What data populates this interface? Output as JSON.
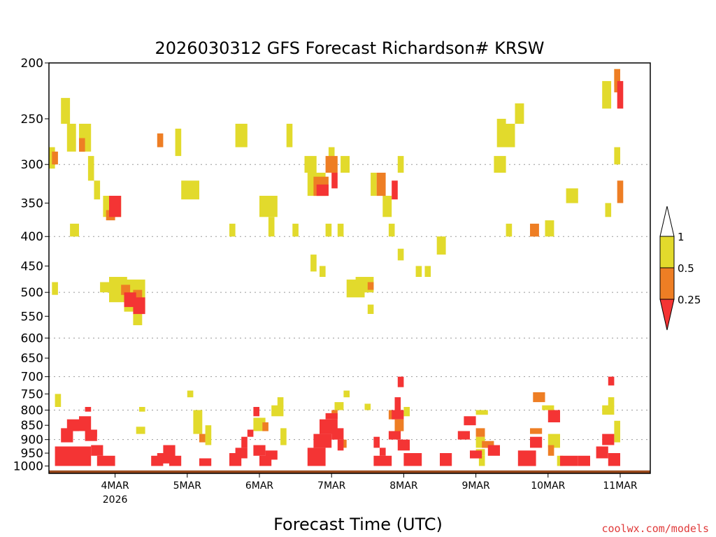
{
  "chart_data": {
    "type": "heatmap",
    "title": "2026030312 GFS Forecast Richardson# KRSW",
    "xlabel": "Forecast Time (UTC)",
    "ylabel": "",
    "credit": "coolwx.com/models",
    "x_range_hours": [
      -10,
      190
    ],
    "y_range_mb": [
      1030,
      200
    ],
    "x_ticks": [
      {
        "hour": 12,
        "label": "4MAR",
        "sublabel": "2026"
      },
      {
        "hour": 36,
        "label": "5MAR"
      },
      {
        "hour": 60,
        "label": "6MAR"
      },
      {
        "hour": 84,
        "label": "7MAR"
      },
      {
        "hour": 108,
        "label": "8MAR"
      },
      {
        "hour": 132,
        "label": "9MAR"
      },
      {
        "hour": 156,
        "label": "10MAR"
      },
      {
        "hour": 180,
        "label": "11MAR"
      }
    ],
    "y_ticks": [
      {
        "p": 200,
        "label": "200"
      },
      {
        "p": 250,
        "label": "250"
      },
      {
        "p": 300,
        "label": "300"
      },
      {
        "p": 350,
        "label": "350"
      },
      {
        "p": 400,
        "label": "400"
      },
      {
        "p": 450,
        "label": "450"
      },
      {
        "p": 500,
        "label": "500"
      },
      {
        "p": 550,
        "label": "550"
      },
      {
        "p": 600,
        "label": "600"
      },
      {
        "p": 650,
        "label": "650"
      },
      {
        "p": 700,
        "label": "700"
      },
      {
        "p": 750,
        "label": "750"
      },
      {
        "p": 800,
        "label": "800"
      },
      {
        "p": 850,
        "label": "850"
      },
      {
        "p": 900,
        "label": "900"
      },
      {
        "p": 950,
        "label": "950"
      },
      {
        "p": 1000,
        "label": "1000"
      }
    ],
    "gridlines_mb": [
      300,
      400,
      500,
      600,
      700,
      800,
      900
    ],
    "legend": {
      "placement": "right",
      "bins": [
        {
          "label": "1",
          "color": "#ffffff"
        },
        {
          "label": "0.5",
          "color": "#e2da2c"
        },
        {
          "label": "0.25",
          "color": "#ee7e24"
        },
        {
          "label": "",
          "color": "#f43434"
        }
      ]
    },
    "colors": {
      "yellow": "#e2da2c",
      "orange": "#ee7e24",
      "red": "#f43434",
      "ground": "#9a4a1c",
      "grid": "#999999"
    },
    "ground_p_mb": 1018,
    "series": [
      {
        "name": "0.5 - 1",
        "color_key": "yellow",
        "cells": [
          [
            -10,
            -8,
            280,
            305
          ],
          [
            -8,
            -6,
            750,
            790
          ],
          [
            -9,
            -7,
            480,
            505
          ],
          [
            -6,
            -3,
            230,
            255
          ],
          [
            -4,
            -1,
            255,
            285
          ],
          [
            -3,
            0,
            380,
            400
          ],
          [
            0,
            4,
            255,
            285
          ],
          [
            3,
            5,
            290,
            320
          ],
          [
            5,
            7,
            320,
            345
          ],
          [
            8,
            14,
            340,
            370
          ],
          [
            7,
            10,
            480,
            500
          ],
          [
            10,
            16,
            470,
            520
          ],
          [
            15,
            22,
            475,
            540
          ],
          [
            18,
            21,
            545,
            570
          ],
          [
            20,
            22,
            790,
            805
          ],
          [
            19,
            22,
            855,
            880
          ],
          [
            32,
            34,
            260,
            290
          ],
          [
            34,
            40,
            320,
            345
          ],
          [
            36,
            38,
            740,
            760
          ],
          [
            38,
            41,
            800,
            880
          ],
          [
            42,
            44,
            850,
            920
          ],
          [
            50,
            52,
            380,
            400
          ],
          [
            52,
            56,
            255,
            280
          ],
          [
            66,
            68,
            760,
            790
          ],
          [
            64,
            68,
            785,
            820
          ],
          [
            58,
            62,
            825,
            870
          ],
          [
            60,
            66,
            340,
            370
          ],
          [
            63,
            65,
            370,
            400
          ],
          [
            67,
            69,
            860,
            920
          ],
          [
            71,
            73,
            380,
            400
          ],
          [
            69,
            71,
            255,
            280
          ],
          [
            75,
            79,
            290,
            310
          ],
          [
            76,
            82,
            310,
            340
          ],
          [
            77,
            79,
            430,
            460
          ],
          [
            80,
            82,
            450,
            470
          ],
          [
            82,
            84,
            380,
            400
          ],
          [
            83,
            85,
            280,
            300
          ],
          [
            85,
            88,
            775,
            800
          ],
          [
            88,
            90,
            740,
            760
          ],
          [
            86,
            88,
            380,
            400
          ],
          [
            87,
            90,
            290,
            310
          ],
          [
            89,
            95,
            475,
            510
          ],
          [
            92,
            98,
            470,
            500
          ],
          [
            96,
            98,
            525,
            545
          ],
          [
            95,
            97,
            780,
            800
          ],
          [
            97,
            99,
            310,
            340
          ],
          [
            101,
            104,
            340,
            370
          ],
          [
            103,
            105,
            380,
            400
          ],
          [
            106,
            108,
            290,
            310
          ],
          [
            106,
            108,
            420,
            440
          ],
          [
            108,
            110,
            790,
            820
          ],
          [
            112,
            114,
            450,
            470
          ],
          [
            115,
            117,
            450,
            470
          ],
          [
            119,
            122,
            400,
            430
          ],
          [
            132,
            135,
            890,
            930
          ],
          [
            132,
            136,
            800,
            815
          ],
          [
            132,
            135,
            935,
            960
          ],
          [
            133,
            135,
            960,
            1000
          ],
          [
            138,
            142,
            290,
            310
          ],
          [
            139,
            142,
            250,
            280
          ],
          [
            141,
            145,
            255,
            280
          ],
          [
            142,
            144,
            380,
            400
          ],
          [
            145,
            148,
            235,
            255
          ],
          [
            154,
            158,
            785,
            800
          ],
          [
            155,
            158,
            375,
            400
          ],
          [
            156,
            160,
            880,
            930
          ],
          [
            159,
            161,
            960,
            1000
          ],
          [
            162,
            166,
            330,
            350
          ],
          [
            174,
            177,
            215,
            240
          ],
          [
            175,
            177,
            350,
            370
          ],
          [
            178,
            180,
            835,
            910
          ],
          [
            176,
            178,
            760,
            790
          ],
          [
            174,
            178,
            785,
            815
          ],
          [
            178,
            180,
            280,
            300
          ],
          [
            178,
            180,
            205,
            220
          ]
        ]
      },
      {
        "name": "0.25 - 0.5",
        "color_key": "orange",
        "cells": [
          [
            -9,
            -7,
            285,
            300
          ],
          [
            0,
            2,
            270,
            285
          ],
          [
            9,
            12,
            360,
            375
          ],
          [
            14,
            17,
            485,
            505
          ],
          [
            18,
            21,
            495,
            530
          ],
          [
            26,
            28,
            265,
            280
          ],
          [
            40,
            42,
            880,
            910
          ],
          [
            61,
            63,
            840,
            870
          ],
          [
            78,
            83,
            315,
            340
          ],
          [
            82,
            86,
            290,
            310
          ],
          [
            84,
            86,
            800,
            830
          ],
          [
            87,
            89,
            900,
            930
          ],
          [
            96,
            98,
            480,
            495
          ],
          [
            99,
            102,
            310,
            340
          ],
          [
            103,
            106,
            800,
            830
          ],
          [
            105,
            108,
            830,
            870
          ],
          [
            132,
            135,
            860,
            890
          ],
          [
            134,
            138,
            905,
            930
          ],
          [
            150,
            154,
            860,
            880
          ],
          [
            151,
            155,
            745,
            775
          ],
          [
            150,
            153,
            380,
            400
          ],
          [
            156,
            158,
            920,
            960
          ],
          [
            179,
            181,
            320,
            350
          ],
          [
            178,
            180,
            205,
            225
          ]
        ]
      },
      {
        "name": "0 - 0.25",
        "color_key": "red",
        "cells": [
          [
            -8,
            4,
            925,
            1000
          ],
          [
            -6,
            -2,
            860,
            910
          ],
          [
            -4,
            0,
            830,
            870
          ],
          [
            0,
            4,
            820,
            870
          ],
          [
            2,
            6,
            865,
            905
          ],
          [
            4,
            8,
            920,
            960
          ],
          [
            6,
            12,
            960,
            1000
          ],
          [
            2,
            4,
            790,
            805
          ],
          [
            4,
            6,
            865,
            890
          ],
          [
            10,
            14,
            340,
            370
          ],
          [
            15,
            19,
            500,
            530
          ],
          [
            18,
            22,
            510,
            545
          ],
          [
            26,
            30,
            950,
            990
          ],
          [
            28,
            32,
            920,
            970
          ],
          [
            24,
            28,
            960,
            1000
          ],
          [
            30,
            34,
            960,
            1000
          ],
          [
            40,
            44,
            970,
            1000
          ],
          [
            50,
            54,
            950,
            1000
          ],
          [
            52,
            56,
            930,
            970
          ],
          [
            54,
            56,
            890,
            930
          ],
          [
            56,
            58,
            865,
            890
          ],
          [
            58,
            60,
            790,
            820
          ],
          [
            60,
            64,
            960,
            1000
          ],
          [
            58,
            62,
            920,
            960
          ],
          [
            62,
            66,
            940,
            975
          ],
          [
            76,
            82,
            930,
            1000
          ],
          [
            78,
            84,
            880,
            930
          ],
          [
            80,
            86,
            830,
            880
          ],
          [
            82,
            86,
            810,
            830
          ],
          [
            84,
            88,
            860,
            900
          ],
          [
            86,
            88,
            900,
            940
          ],
          [
            79,
            83,
            325,
            340
          ],
          [
            84,
            86,
            310,
            330
          ],
          [
            98,
            100,
            890,
            930
          ],
          [
            100,
            102,
            930,
            960
          ],
          [
            98,
            104,
            960,
            1000
          ],
          [
            104,
            108,
            800,
            830
          ],
          [
            103,
            107,
            870,
            900
          ],
          [
            105,
            107,
            760,
            800
          ],
          [
            106,
            108,
            700,
            730
          ],
          [
            104,
            106,
            320,
            345
          ],
          [
            106,
            110,
            900,
            940
          ],
          [
            108,
            114,
            950,
            1000
          ],
          [
            120,
            124,
            950,
            1000
          ],
          [
            128,
            132,
            820,
            850
          ],
          [
            130,
            134,
            940,
            970
          ],
          [
            136,
            140,
            920,
            960
          ],
          [
            126,
            130,
            870,
            900
          ],
          [
            146,
            152,
            940,
            1000
          ],
          [
            150,
            154,
            890,
            930
          ],
          [
            156,
            160,
            800,
            840
          ],
          [
            160,
            166,
            960,
            1000
          ],
          [
            166,
            170,
            960,
            1000
          ],
          [
            172,
            176,
            925,
            970
          ],
          [
            174,
            178,
            880,
            920
          ],
          [
            176,
            180,
            950,
            1000
          ],
          [
            176,
            178,
            700,
            725
          ],
          [
            179,
            181,
            215,
            240
          ]
        ]
      }
    ]
  }
}
